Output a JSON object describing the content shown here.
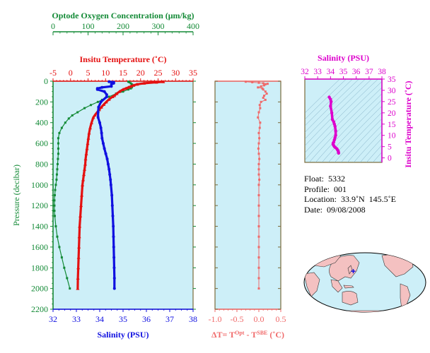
{
  "colors": {
    "oxygen": "#138a36",
    "temperature": "#e41010",
    "salinity": "#1010e0",
    "dt": "#f06a6a",
    "ts": "#dd00cc",
    "panel_bg": "#cdeff8",
    "frame": "#7a6a3a",
    "land": "#f4c1c1",
    "ocean": "#cdeff8"
  },
  "chart_data": [
    {
      "type": "scatter",
      "title": "",
      "ylabel": "Pressure (decibar)",
      "ylim": [
        2200,
        0
      ],
      "yticks": [
        0,
        200,
        400,
        600,
        800,
        1000,
        1200,
        1400,
        1600,
        1800,
        2000,
        2200
      ],
      "grid": false,
      "axes": {
        "oxygen": {
          "label": "Optode Oxygen Concentration (μm/kg)",
          "range": [
            0,
            400
          ],
          "ticks": [
            0,
            100,
            200,
            300,
            400
          ]
        },
        "temperature": {
          "label": "Insitu Temperature (˚C)",
          "range": [
            -5,
            35
          ],
          "ticks": [
            -5,
            0,
            5,
            10,
            15,
            20,
            25,
            30,
            35
          ]
        },
        "salinity": {
          "label": "Salinity (PSU)",
          "range": [
            32,
            38
          ],
          "ticks": [
            32,
            33,
            34,
            35,
            36,
            37,
            38
          ]
        }
      },
      "series": [
        {
          "axis": "oxygen",
          "p": [
            5,
            10,
            20,
            30,
            40,
            50,
            60,
            70,
            80,
            100,
            120,
            150,
            180,
            200,
            230,
            260,
            300,
            330,
            360,
            400,
            450,
            500,
            550,
            600,
            650,
            700,
            750,
            800,
            850,
            900,
            950,
            1000,
            1050,
            1100,
            1150,
            1200,
            1250,
            1300,
            1400,
            1500,
            1600,
            1700,
            1800,
            1900,
            2000
          ],
          "x": [
            215,
            218,
            222,
            225,
            226,
            226,
            225,
            222,
            215,
            200,
            180,
            160,
            140,
            128,
            108,
            90,
            70,
            55,
            45,
            35,
            25,
            18,
            15,
            15,
            15,
            15,
            14,
            13,
            12,
            11,
            10,
            8,
            6,
            5,
            4,
            4,
            4,
            5,
            8,
            12,
            18,
            25,
            32,
            40,
            48
          ]
        },
        {
          "axis": "temperature",
          "p": [
            5,
            10,
            20,
            30,
            40,
            50,
            60,
            70,
            80,
            100,
            120,
            140,
            150,
            175,
            200,
            225,
            250,
            275,
            300,
            325,
            350,
            400,
            450,
            500,
            550,
            600,
            650,
            700,
            750,
            800,
            850,
            900,
            950,
            1000,
            1100,
            1200,
            1300,
            1400,
            1500,
            1600,
            1700,
            1800,
            1900,
            2000
          ],
          "x": [
            26.5,
            24.5,
            21.0,
            19.0,
            18.0,
            17.2,
            16.5,
            15.8,
            15.0,
            14.0,
            13.2,
            12.5,
            12.0,
            11.0,
            10.2,
            9.5,
            8.8,
            8.2,
            7.6,
            7.0,
            6.5,
            6.0,
            5.6,
            5.3,
            5.1,
            4.9,
            4.7,
            4.5,
            4.3,
            4.2,
            4.0,
            3.8,
            3.6,
            3.4,
            3.2,
            3.0,
            2.8,
            2.6,
            2.5,
            2.4,
            2.3,
            2.2,
            2.1,
            2.05
          ]
        },
        {
          "axis": "salinity",
          "p": [
            5,
            10,
            20,
            30,
            50,
            60,
            70,
            80,
            100,
            130,
            150,
            200,
            250,
            300,
            350,
            400,
            450,
            500,
            550,
            600,
            650,
            700,
            750,
            800,
            850,
            900,
            950,
            1000,
            1100,
            1200,
            1300,
            1400,
            1500,
            1600,
            1700,
            1800,
            1900,
            2000
          ],
          "x": [
            34.4,
            34.6,
            34.6,
            34.5,
            34.5,
            34.1,
            33.9,
            33.9,
            34.2,
            34.3,
            34.3,
            34.05,
            33.95,
            33.93,
            33.93,
            34.0,
            34.05,
            34.08,
            34.1,
            34.15,
            34.2,
            34.26,
            34.32,
            34.36,
            34.4,
            34.43,
            34.46,
            34.48,
            34.52,
            34.54,
            34.56,
            34.58,
            34.59,
            34.6,
            34.61,
            34.62,
            34.63,
            34.63
          ]
        }
      ]
    },
    {
      "type": "scatter",
      "xlabel": "ΔT= T^Opt - T^SBE (˚C)",
      "xlim": [
        -1.0,
        0.5
      ],
      "xticks": [
        -1.0,
        -0.5,
        0.0,
        0.5
      ],
      "xticklabels": [
        "-1.0",
        "-0.5",
        "0.0",
        "0.5"
      ],
      "ylim": [
        2200,
        0
      ],
      "series": [
        {
          "name": "",
          "p": [
            5,
            10,
            15,
            20,
            25,
            30,
            40,
            50,
            60,
            70,
            80,
            100,
            120,
            140,
            160,
            180,
            200,
            230,
            260,
            300,
            350,
            400,
            450,
            500,
            550,
            600,
            650,
            700,
            750,
            800,
            850,
            900,
            950,
            1000,
            1100,
            1200,
            1300,
            1400,
            1500,
            1600,
            1700,
            1800,
            1900,
            2000
          ],
          "x": [
            -0.3,
            -0.15,
            0.0,
            0.1,
            0.2,
            0.15,
            0.12,
            0.05,
            -0.02,
            0.08,
            0.1,
            0.15,
            0.18,
            0.12,
            0.1,
            0.15,
            0.05,
            0.02,
            0.03,
            0.0,
            -0.02,
            0.03,
            0.02,
            0.0,
            0.01,
            0.0,
            -0.01,
            0.0,
            0.01,
            0.0,
            0.0,
            0.0,
            0.01,
            0.0,
            0.0,
            0.0,
            0.0,
            0.0,
            0.0,
            0.0,
            0.0,
            0.0,
            0.0,
            0.0
          ]
        }
      ]
    },
    {
      "type": "scatter",
      "xlabel": "Salinity (PSU)",
      "ylabel": "Insitu Temperature (˚C)",
      "xlim": [
        32,
        38
      ],
      "ylim": [
        -2,
        35
      ],
      "xticks": [
        32,
        33,
        34,
        35,
        36,
        37,
        38
      ],
      "yticks": [
        0,
        5,
        10,
        15,
        20,
        25,
        30,
        35
      ],
      "series": [
        {
          "name": "",
          "x": [
            33.9,
            34.0,
            34.05,
            34.0,
            34.1,
            34.15,
            34.25,
            34.3,
            34.35,
            34.4,
            34.4,
            34.35,
            34.3,
            34.25,
            34.2,
            34.2,
            34.25,
            34.3,
            34.4,
            34.5,
            34.55,
            34.6,
            34.62,
            34.63
          ],
          "y": [
            27,
            26,
            25,
            23,
            20,
            17,
            16,
            15,
            14,
            12,
            10,
            9,
            8,
            7,
            6.5,
            6,
            5.5,
            5,
            4.5,
            4,
            3.5,
            3,
            2.5,
            2.1
          ]
        }
      ]
    }
  ],
  "info": {
    "float": "Float:  5332",
    "profile": "Profile:  001",
    "location": "Location:  33.9˚N  145.5˚E",
    "date": "Date:  09/08/2008"
  },
  "map": {
    "float_lon": 145.5,
    "float_lat": 33.9
  }
}
